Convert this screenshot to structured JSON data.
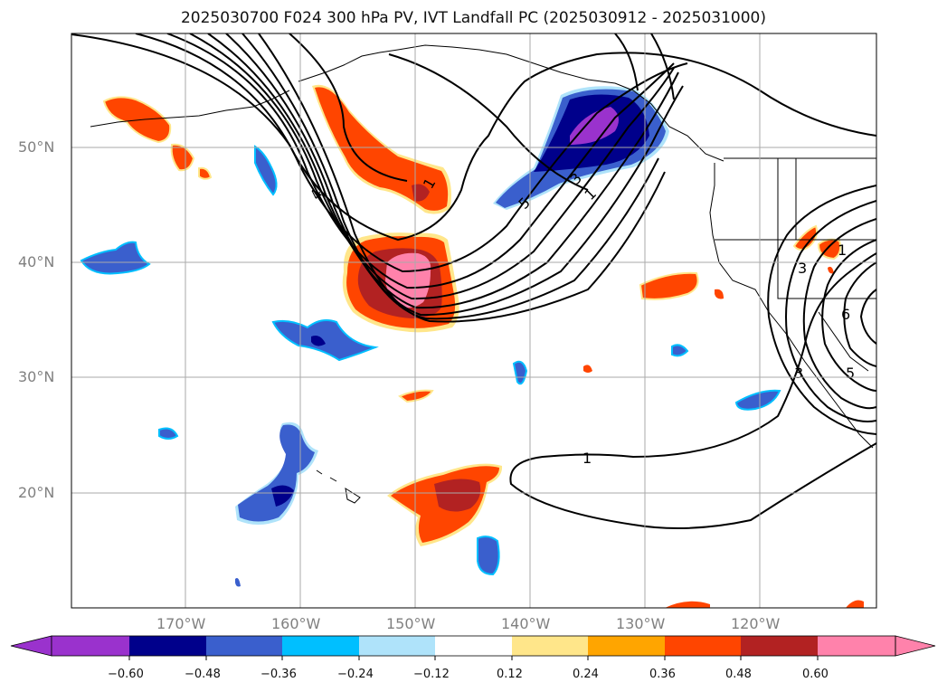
{
  "title": "2025030700 F024 300 hPa PV, IVT Landfall PC (2025030912 - 2025031000)",
  "map": {
    "lon_ticks": [
      "170°W",
      "160°W",
      "150°W",
      "140°W",
      "130°W",
      "120°W"
    ],
    "lat_ticks": [
      "50°N",
      "40°N",
      "30°N",
      "20°N"
    ],
    "contour_labels": [
      "4",
      "1",
      "3",
      "5",
      "1",
      "1",
      "3",
      "6",
      "5",
      "3",
      "1"
    ]
  },
  "colorbar": {
    "ticks": [
      "−0.60",
      "−0.48",
      "−0.36",
      "−0.24",
      "−0.12",
      "0.12",
      "0.24",
      "0.36",
      "0.48",
      "0.60"
    ],
    "colors": [
      "#9a32cd",
      "#00008b",
      "#3a5fcd",
      "#00bfff",
      "#afe3fa",
      "#ffffff",
      "#ffe68a",
      "#ffa500",
      "#ff4500",
      "#b22222",
      "#ff82ab"
    ]
  }
}
